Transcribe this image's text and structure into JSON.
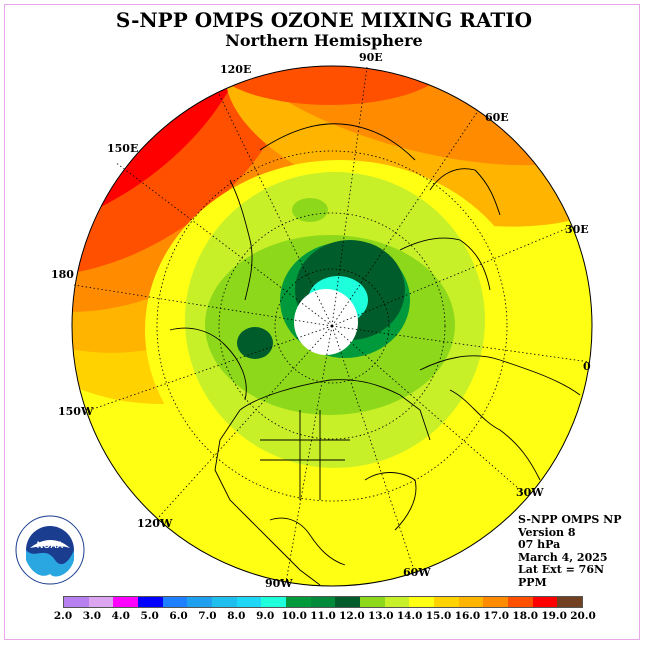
{
  "title": "S-NPP OMPS OZONE MIXING RATIO",
  "subtitle": "Northern Hemisphere",
  "longitude_labels": [
    "90E",
    "60E",
    "30E",
    "0",
    "30W",
    "60W",
    "90W",
    "120W",
    "150W",
    "180",
    "150E",
    "120E"
  ],
  "info": {
    "instrument": "S-NPP OMPS NP",
    "version": "Version 8",
    "pressure": "07 hPa",
    "date": "March 4, 2025",
    "lat_ext": "Lat Ext = 76N",
    "units": "PPM"
  },
  "colorbar": {
    "ticks": [
      "2.0",
      "3.0",
      "4.0",
      "5.0",
      "6.0",
      "7.0",
      "8.0",
      "9.0",
      "10.0",
      "11.0",
      "12.0",
      "13.0",
      "14.0",
      "15.0",
      "16.0",
      "17.0",
      "18.0",
      "19.0",
      "20.0"
    ],
    "colors": [
      "#b77ff0",
      "#dba5ef",
      "#ff00ff",
      "#0000ff",
      "#1e7fff",
      "#1ea0ef",
      "#1ebeef",
      "#1ed6f6",
      "#1effdb",
      "#009a3c",
      "#008a3a",
      "#005c2b",
      "#8dd81a",
      "#c8f028",
      "#ffff14",
      "#ffd200",
      "#ffb400",
      "#ff8c00",
      "#ff5000",
      "#ff0000",
      "#704020"
    ]
  },
  "logo": {
    "text": "NOAA",
    "ring_text": "NATIONAL OCEANIC AND ATMOSPHERIC ADMINISTRATION · U.S. DEPARTMENT OF COMMERCE"
  }
}
